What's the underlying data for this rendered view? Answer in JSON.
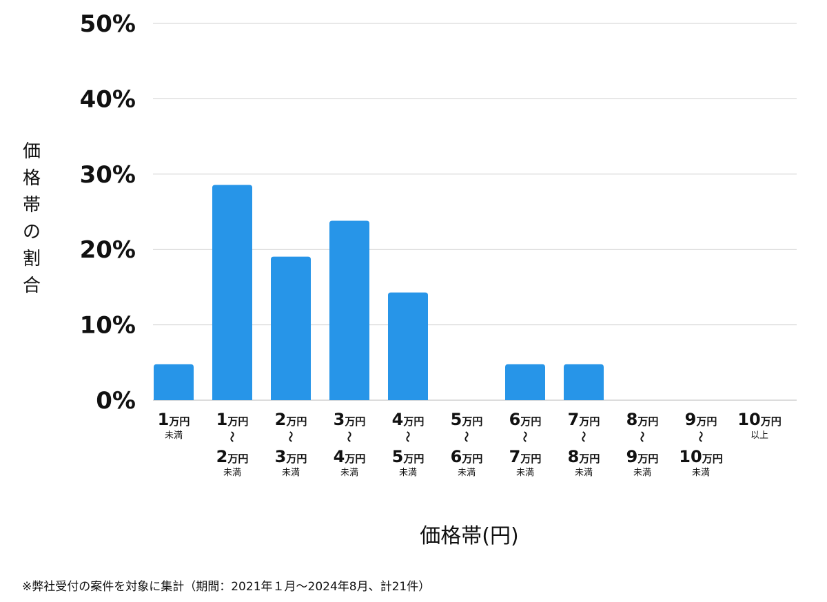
{
  "chart_data": {
    "type": "bar",
    "categories": [
      {
        "lines": [
          "1万円",
          "未満"
        ]
      },
      {
        "lines": [
          "1万円",
          "〜",
          "2万円",
          "未満"
        ]
      },
      {
        "lines": [
          "2万円",
          "〜",
          "3万円",
          "未満"
        ]
      },
      {
        "lines": [
          "3万円",
          "〜",
          "4万円",
          "未満"
        ]
      },
      {
        "lines": [
          "4万円",
          "〜",
          "5万円",
          "未満"
        ]
      },
      {
        "lines": [
          "5万円",
          "〜",
          "6万円",
          "未満"
        ]
      },
      {
        "lines": [
          "6万円",
          "〜",
          "7万円",
          "未満"
        ]
      },
      {
        "lines": [
          "7万円",
          "〜",
          "8万円",
          "未満"
        ]
      },
      {
        "lines": [
          "8万円",
          "〜",
          "9万円",
          "未満"
        ]
      },
      {
        "lines": [
          "9万円",
          "〜",
          "10万円",
          "未満"
        ]
      },
      {
        "lines": [
          "10万円",
          "以上"
        ]
      }
    ],
    "values": [
      4.76,
      28.57,
      19.05,
      23.81,
      14.29,
      0,
      4.76,
      4.76,
      0,
      0,
      0
    ],
    "unit": "%",
    "ylim": [
      0,
      50
    ],
    "yticks": [
      "0%",
      "10%",
      "20%",
      "30%",
      "40%",
      "50%"
    ],
    "xlabel": "価格帯(円)",
    "ylabel": "価格帯の割合",
    "grid": true,
    "bar_color": "#2795e8",
    "grid_color": "#d0d0d0"
  },
  "footnote": "※弊社受付の案件を対象に集計（期間：2021年１月〜2024年8月、計21件）"
}
